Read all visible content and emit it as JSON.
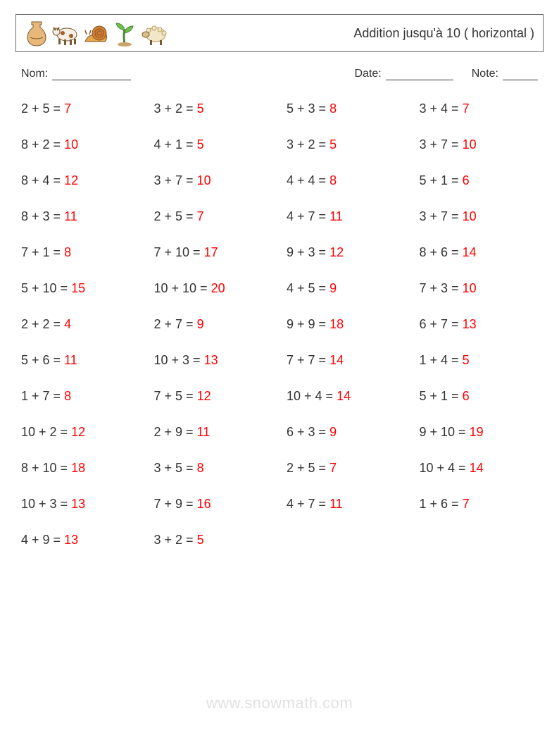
{
  "header": {
    "title": "Addition jusqu'à 10 ( horizontal )",
    "title_color": "#333333",
    "title_fontsize": 18,
    "border_color": "#666666",
    "icons": [
      "vase-icon",
      "cow-icon",
      "snail-icon",
      "sprout-icon",
      "sheep-icon"
    ]
  },
  "meta": {
    "name_label": "Nom:",
    "date_label": "Date:",
    "note_label": "Note:",
    "name_blank_width": 112,
    "date_blank_width": 96,
    "note_blank_width": 50,
    "fontsize": 16
  },
  "colors": {
    "text": "#333333",
    "answer": "#ff0000",
    "background": "#ffffff",
    "watermark": "rgba(0,0,0,0.12)"
  },
  "grid": {
    "columns": 4,
    "rows": 13,
    "fontsize": 18,
    "row_gap": 30,
    "problems": [
      {
        "a": 2,
        "b": 5,
        "ans": 7
      },
      {
        "a": 3,
        "b": 2,
        "ans": 5
      },
      {
        "a": 5,
        "b": 3,
        "ans": 8
      },
      {
        "a": 3,
        "b": 4,
        "ans": 7
      },
      {
        "a": 8,
        "b": 2,
        "ans": 10
      },
      {
        "a": 4,
        "b": 1,
        "ans": 5
      },
      {
        "a": 3,
        "b": 2,
        "ans": 5
      },
      {
        "a": 3,
        "b": 7,
        "ans": 10
      },
      {
        "a": 8,
        "b": 4,
        "ans": 12
      },
      {
        "a": 3,
        "b": 7,
        "ans": 10
      },
      {
        "a": 4,
        "b": 4,
        "ans": 8
      },
      {
        "a": 5,
        "b": 1,
        "ans": 6
      },
      {
        "a": 8,
        "b": 3,
        "ans": 11
      },
      {
        "a": 2,
        "b": 5,
        "ans": 7
      },
      {
        "a": 4,
        "b": 7,
        "ans": 11
      },
      {
        "a": 3,
        "b": 7,
        "ans": 10
      },
      {
        "a": 7,
        "b": 1,
        "ans": 8
      },
      {
        "a": 7,
        "b": 10,
        "ans": 17
      },
      {
        "a": 9,
        "b": 3,
        "ans": 12
      },
      {
        "a": 8,
        "b": 6,
        "ans": 14
      },
      {
        "a": 5,
        "b": 10,
        "ans": 15
      },
      {
        "a": 10,
        "b": 10,
        "ans": 20
      },
      {
        "a": 4,
        "b": 5,
        "ans": 9
      },
      {
        "a": 7,
        "b": 3,
        "ans": 10
      },
      {
        "a": 2,
        "b": 2,
        "ans": 4
      },
      {
        "a": 2,
        "b": 7,
        "ans": 9
      },
      {
        "a": 9,
        "b": 9,
        "ans": 18
      },
      {
        "a": 6,
        "b": 7,
        "ans": 13
      },
      {
        "a": 5,
        "b": 6,
        "ans": 11
      },
      {
        "a": 10,
        "b": 3,
        "ans": 13
      },
      {
        "a": 7,
        "b": 7,
        "ans": 14
      },
      {
        "a": 1,
        "b": 4,
        "ans": 5
      },
      {
        "a": 1,
        "b": 7,
        "ans": 8
      },
      {
        "a": 7,
        "b": 5,
        "ans": 12
      },
      {
        "a": 10,
        "b": 4,
        "ans": 14
      },
      {
        "a": 5,
        "b": 1,
        "ans": 6
      },
      {
        "a": 10,
        "b": 2,
        "ans": 12
      },
      {
        "a": 2,
        "b": 9,
        "ans": 11
      },
      {
        "a": 6,
        "b": 3,
        "ans": 9
      },
      {
        "a": 9,
        "b": 10,
        "ans": 19
      },
      {
        "a": 8,
        "b": 10,
        "ans": 18
      },
      {
        "a": 3,
        "b": 5,
        "ans": 8
      },
      {
        "a": 2,
        "b": 5,
        "ans": 7
      },
      {
        "a": 10,
        "b": 4,
        "ans": 14
      },
      {
        "a": 10,
        "b": 3,
        "ans": 13
      },
      {
        "a": 7,
        "b": 9,
        "ans": 16
      },
      {
        "a": 4,
        "b": 7,
        "ans": 11
      },
      {
        "a": 1,
        "b": 6,
        "ans": 7
      },
      {
        "a": 4,
        "b": 9,
        "ans": 13
      },
      {
        "a": 3,
        "b": 2,
        "ans": 5
      }
    ]
  },
  "watermark": "www.snowmath.com"
}
